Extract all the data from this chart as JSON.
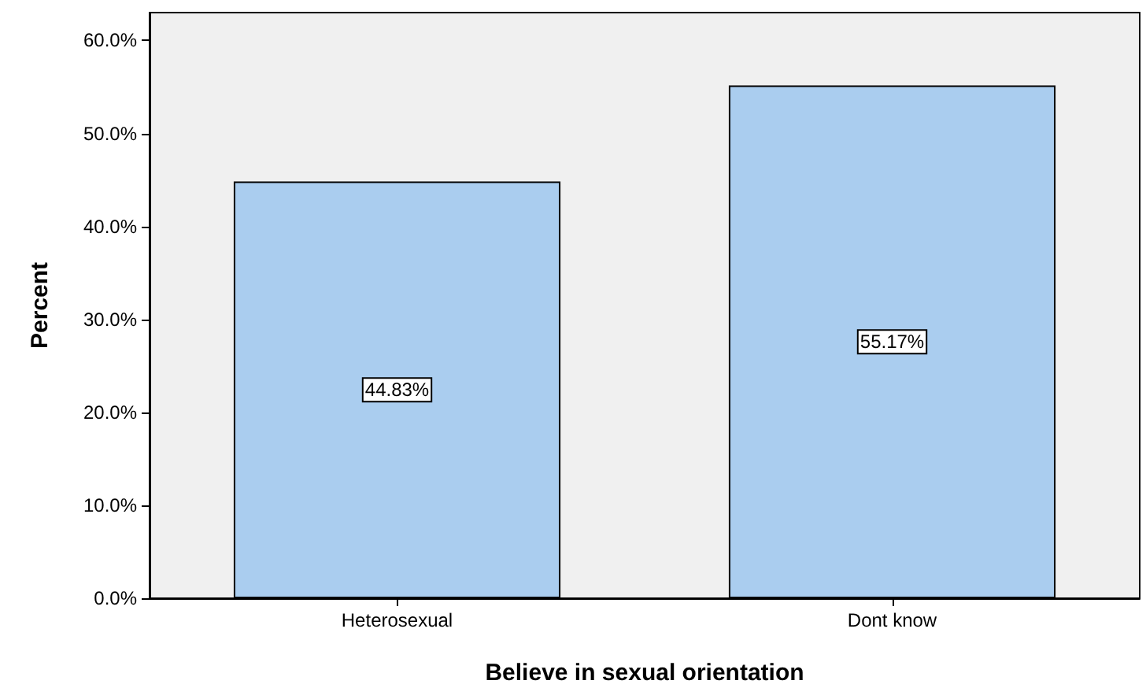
{
  "chart_data": {
    "type": "bar",
    "xlabel": "Believe in sexual orientation",
    "ylabel": "Percent",
    "categories": [
      "Heterosexual",
      "Dont know"
    ],
    "values": [
      44.83,
      55.17
    ],
    "value_labels": [
      "44.83%",
      "55.17%"
    ],
    "color": "#aacdef",
    "ylim": [
      0,
      63
    ],
    "yticks": [
      {
        "value": 0,
        "label": "0.0%"
      },
      {
        "value": 10,
        "label": "10.0%"
      },
      {
        "value": 20,
        "label": "20.0%"
      },
      {
        "value": 30,
        "label": "30.0%"
      },
      {
        "value": 40,
        "label": "40.0%"
      },
      {
        "value": 50,
        "label": "50.0%"
      },
      {
        "value": 60,
        "label": "60.0%"
      }
    ],
    "grid": false
  }
}
